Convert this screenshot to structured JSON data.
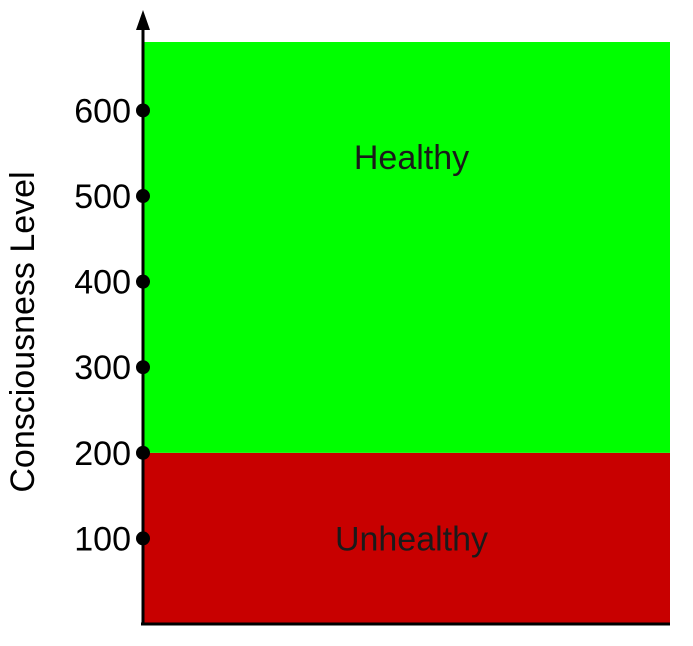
{
  "chart_data": {
    "type": "bar",
    "ylabel": "Consciousness Level",
    "xlabel": "",
    "title": "",
    "ylim": [
      0,
      680
    ],
    "yticks": [
      "100",
      "200",
      "300",
      "400",
      "500",
      "600"
    ],
    "bands": [
      {
        "label": "Unhealthy",
        "from": 0,
        "to": 200,
        "color": "#c80000"
      },
      {
        "label": "Healthy",
        "from": 200,
        "to": 680,
        "color": "#00ff00"
      }
    ],
    "grid": false
  }
}
